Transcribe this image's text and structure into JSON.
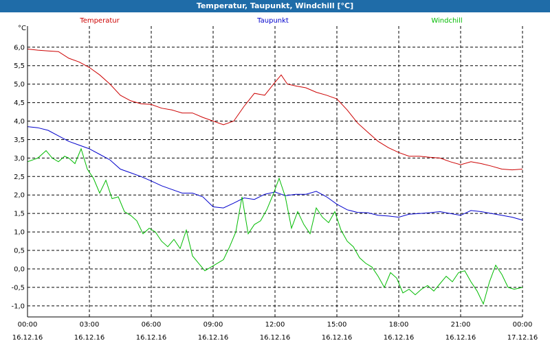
{
  "window": {
    "title": "Temperatur, Taupunkt, Windchill [°C]"
  },
  "chart_data": {
    "type": "line",
    "title": "Temperatur, Taupunkt, Windchill [°C]",
    "ylabel": "°C",
    "ylim": [
      -1.3,
      6.2
    ],
    "grid": true,
    "legend_position": "top",
    "y_ticks": [
      "6,0",
      "5,5",
      "5,0",
      "4,5",
      "4,0",
      "3,5",
      "3,0",
      "2,5",
      "2,0",
      "1,5",
      "1,0",
      "0,5",
      "0,0",
      "-0,5",
      "-1,0"
    ],
    "y_tick_values": [
      6.0,
      5.5,
      5.0,
      4.5,
      4.0,
      3.5,
      3.0,
      2.5,
      2.0,
      1.5,
      1.0,
      0.5,
      0.0,
      -0.5,
      -1.0
    ],
    "x_ticks": [
      {
        "time": "00:00",
        "date": "16.12.16",
        "hour": 0
      },
      {
        "time": "03:00",
        "date": "16.12.16",
        "hour": 3
      },
      {
        "time": "06:00",
        "date": "16.12.16",
        "hour": 6
      },
      {
        "time": "09:00",
        "date": "16.12.16",
        "hour": 9
      },
      {
        "time": "12:00",
        "date": "16.12.16",
        "hour": 12
      },
      {
        "time": "15:00",
        "date": "16.12.16",
        "hour": 15
      },
      {
        "time": "18:00",
        "date": "16.12.16",
        "hour": 18
      },
      {
        "time": "21:00",
        "date": "16.12.16",
        "hour": 21
      },
      {
        "time": "00:00",
        "date": "17.12.16",
        "hour": 24
      }
    ],
    "x_range_hours": [
      0,
      24
    ],
    "series": [
      {
        "name": "Temperatur",
        "color": "#cc0000",
        "x": [
          0,
          0.5,
          1,
          1.5,
          2,
          2.5,
          3,
          3.5,
          4,
          4.5,
          5,
          5.5,
          6,
          6.5,
          7,
          7.5,
          8,
          8.5,
          9,
          9.5,
          10,
          10.5,
          11,
          11.5,
          12,
          12.3,
          12.6,
          13,
          13.5,
          14,
          14.5,
          15,
          15.5,
          16,
          16.5,
          17,
          17.5,
          18,
          18.5,
          19,
          19.5,
          20,
          20.5,
          21,
          21.5,
          22,
          22.5,
          23,
          23.5,
          24
        ],
        "values": [
          5.95,
          5.92,
          5.9,
          5.88,
          5.7,
          5.6,
          5.45,
          5.25,
          5.0,
          4.7,
          4.55,
          4.47,
          4.45,
          4.35,
          4.3,
          4.22,
          4.22,
          4.1,
          4.0,
          3.9,
          4.0,
          4.4,
          4.75,
          4.7,
          5.05,
          5.25,
          5.0,
          4.95,
          4.9,
          4.78,
          4.7,
          4.6,
          4.3,
          3.95,
          3.7,
          3.45,
          3.28,
          3.15,
          3.05,
          3.05,
          3.02,
          3.0,
          2.9,
          2.82,
          2.9,
          2.85,
          2.78,
          2.7,
          2.68,
          2.7
        ]
      },
      {
        "name": "Taupunkt",
        "color": "#0000cc",
        "x": [
          0,
          0.5,
          1,
          1.5,
          2,
          2.5,
          3,
          3.5,
          4,
          4.5,
          5,
          5.5,
          6,
          6.5,
          7,
          7.5,
          8,
          8.5,
          9,
          9.5,
          10,
          10.5,
          11,
          11.5,
          12,
          12.5,
          13,
          13.5,
          14,
          14.5,
          15,
          15.5,
          16,
          16.5,
          17,
          17.5,
          18,
          18.5,
          19,
          19.5,
          20,
          20.5,
          21,
          21.5,
          22,
          22.5,
          23,
          23.5,
          24
        ],
        "values": [
          3.85,
          3.82,
          3.75,
          3.6,
          3.45,
          3.35,
          3.25,
          3.1,
          2.95,
          2.7,
          2.6,
          2.5,
          2.38,
          2.25,
          2.15,
          2.05,
          2.05,
          1.95,
          1.68,
          1.65,
          1.78,
          1.92,
          1.88,
          2.02,
          2.08,
          1.98,
          2.02,
          2.02,
          2.1,
          1.95,
          1.75,
          1.6,
          1.53,
          1.52,
          1.45,
          1.43,
          1.4,
          1.48,
          1.5,
          1.52,
          1.55,
          1.5,
          1.45,
          1.58,
          1.55,
          1.5,
          1.45,
          1.4,
          1.32
        ]
      },
      {
        "name": "Windchill",
        "color": "#00bb00",
        "x": [
          0,
          0.5,
          0.9,
          1.2,
          1.5,
          1.8,
          2.0,
          2.3,
          2.6,
          2.9,
          3.2,
          3.5,
          3.8,
          4.1,
          4.4,
          4.7,
          5.0,
          5.3,
          5.6,
          5.9,
          6.2,
          6.5,
          6.8,
          7.1,
          7.4,
          7.7,
          8.0,
          8.3,
          8.6,
          8.9,
          9.2,
          9.5,
          9.8,
          10.1,
          10.4,
          10.7,
          11.0,
          11.3,
          11.6,
          11.9,
          12.2,
          12.5,
          12.8,
          13.1,
          13.4,
          13.7,
          14.0,
          14.3,
          14.6,
          14.9,
          15.2,
          15.5,
          15.8,
          16.1,
          16.4,
          16.7,
          17.0,
          17.3,
          17.6,
          17.9,
          18.2,
          18.5,
          18.8,
          19.1,
          19.4,
          19.7,
          20.0,
          20.3,
          20.6,
          20.9,
          21.2,
          21.5,
          21.8,
          22.1,
          22.4,
          22.7,
          23.0,
          23.3,
          23.6,
          24.0
        ],
        "values": [
          2.9,
          3.0,
          3.2,
          3.0,
          2.9,
          3.05,
          3.0,
          2.85,
          3.25,
          2.7,
          2.45,
          2.05,
          2.4,
          1.9,
          1.95,
          1.55,
          1.45,
          1.3,
          0.95,
          1.1,
          1.0,
          0.75,
          0.6,
          0.8,
          0.55,
          1.05,
          0.35,
          0.15,
          -0.05,
          0.05,
          0.15,
          0.25,
          0.6,
          1.0,
          1.95,
          0.95,
          1.2,
          1.3,
          1.6,
          2.0,
          2.45,
          1.95,
          1.1,
          1.55,
          1.2,
          0.95,
          1.65,
          1.4,
          1.25,
          1.55,
          1.05,
          0.75,
          0.6,
          0.3,
          0.15,
          0.05,
          -0.2,
          -0.5,
          -0.1,
          -0.25,
          -0.65,
          -0.55,
          -0.7,
          -0.55,
          -0.45,
          -0.6,
          -0.4,
          -0.2,
          -0.35,
          -0.1,
          -0.05,
          -0.35,
          -0.6,
          -0.95,
          -0.35,
          0.1,
          -0.15,
          -0.5,
          -0.55,
          -0.5
        ]
      }
    ]
  }
}
